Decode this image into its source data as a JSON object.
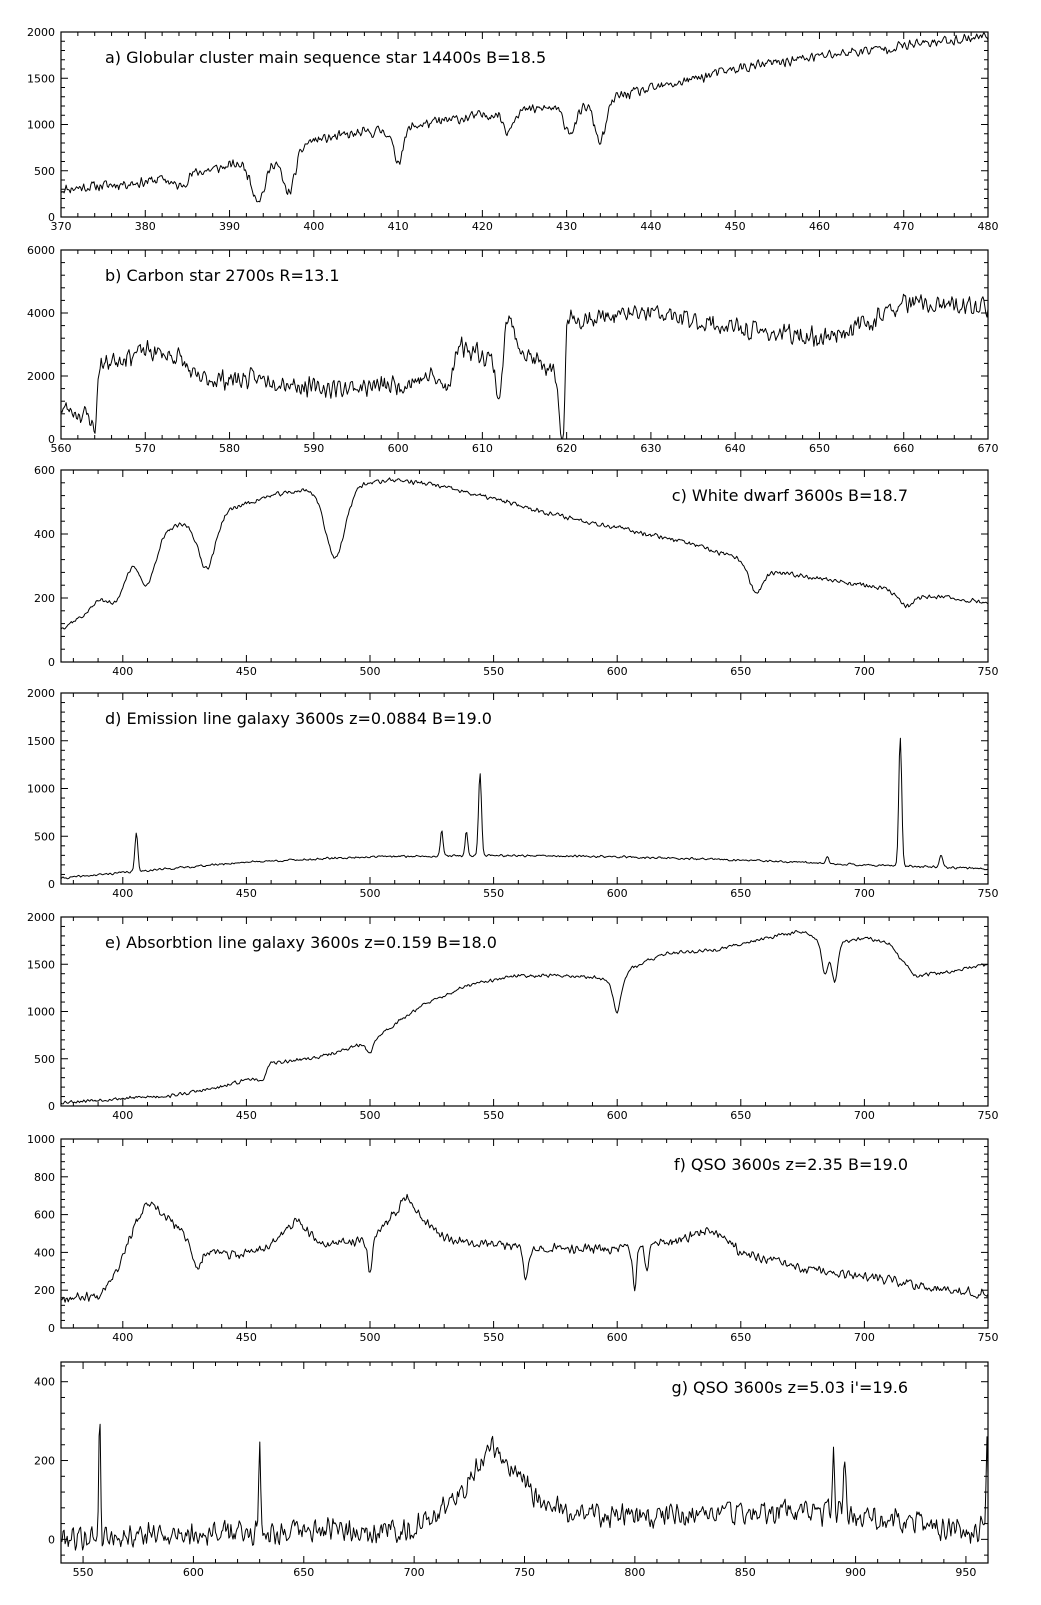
{
  "chart_data": [
    {
      "type": "line",
      "title": "a) Globular cluster main sequence star 14400s B=18.5",
      "xlim": [
        370,
        480
      ],
      "ylim": [
        0,
        2000
      ],
      "xticks": [
        370,
        380,
        390,
        400,
        410,
        420,
        430,
        440,
        450,
        460,
        470,
        480
      ],
      "yticks": [
        0,
        500,
        1000,
        1500,
        2000
      ],
      "title_position": "top-left",
      "continuum": [
        [
          370,
          300
        ],
        [
          380,
          380
        ],
        [
          390,
          550
        ],
        [
          400,
          830
        ],
        [
          410,
          960
        ],
        [
          420,
          1100
        ],
        [
          430,
          1200
        ],
        [
          440,
          1380
        ],
        [
          450,
          1600
        ],
        [
          460,
          1740
        ],
        [
          470,
          1850
        ],
        [
          480,
          1960
        ]
      ],
      "features": [
        [
          384,
          -120,
          0.8
        ],
        [
          393.5,
          -450,
          0.9
        ],
        [
          397,
          -480,
          0.8
        ],
        [
          410,
          -350,
          0.6
        ],
        [
          423,
          -200,
          0.5
        ],
        [
          430.5,
          -280,
          0.8
        ],
        [
          434,
          -450,
          0.7
        ],
        [
          486,
          0,
          1
        ]
      ],
      "noise": 70,
      "seed": 11
    },
    {
      "type": "line",
      "title": "b) Carbon star 2700s R=13.1",
      "xlim": [
        560,
        670
      ],
      "ylim": [
        0,
        6000
      ],
      "xticks": [
        560,
        570,
        580,
        590,
        600,
        610,
        620,
        630,
        640,
        650,
        660,
        670
      ],
      "yticks": [
        0,
        2000,
        4000,
        6000
      ],
      "title_position": "top-left",
      "continuum": [
        [
          560,
          1000
        ],
        [
          563.5,
          700
        ],
        [
          564,
          100
        ],
        [
          564.5,
          2300
        ],
        [
          566,
          2500
        ],
        [
          570,
          2800
        ],
        [
          574,
          2600
        ],
        [
          576,
          1900
        ],
        [
          585,
          1900
        ],
        [
          590,
          1600
        ],
        [
          600,
          1700
        ],
        [
          604,
          2000
        ],
        [
          606,
          1500
        ],
        [
          607,
          3000
        ],
        [
          612,
          2500
        ],
        [
          613,
          3900
        ],
        [
          615,
          2700
        ],
        [
          619,
          2000
        ],
        [
          619.6,
          900
        ],
        [
          620,
          3800
        ],
        [
          630,
          4000
        ],
        [
          640,
          3500
        ],
        [
          650,
          3200
        ],
        [
          655,
          3600
        ],
        [
          660,
          4300
        ],
        [
          665,
          4200
        ],
        [
          670,
          4200
        ]
      ],
      "features": [
        [
          612,
          -1200,
          0.4
        ],
        [
          619.3,
          -1400,
          0.35
        ],
        [
          567,
          0,
          1
        ]
      ],
      "noise": 380,
      "seed": 23
    },
    {
      "type": "line",
      "title": "c) White dwarf 3600s B=18.7",
      "xlim": [
        375,
        750
      ],
      "ylim": [
        0,
        600
      ],
      "xticks": [
        400,
        450,
        500,
        550,
        600,
        650,
        700,
        750
      ],
      "yticks": [
        0,
        200,
        400,
        600
      ],
      "title_position": "top-right",
      "continuum": [
        [
          375,
          105
        ],
        [
          385,
          150
        ],
        [
          395,
          240
        ],
        [
          405,
          320
        ],
        [
          420,
          420
        ],
        [
          440,
          470
        ],
        [
          460,
          520
        ],
        [
          475,
          540
        ],
        [
          500,
          560
        ],
        [
          510,
          570
        ],
        [
          525,
          555
        ],
        [
          550,
          510
        ],
        [
          575,
          460
        ],
        [
          600,
          420
        ],
        [
          625,
          380
        ],
        [
          650,
          320
        ],
        [
          660,
          280
        ],
        [
          675,
          270
        ],
        [
          700,
          240
        ],
        [
          720,
          210
        ],
        [
          735,
          200
        ],
        [
          750,
          185
        ]
      ],
      "features": [
        [
          397,
          -70,
          3
        ],
        [
          410,
          -110,
          3
        ],
        [
          434,
          -160,
          3.5
        ],
        [
          486,
          -220,
          4
        ],
        [
          656,
          -80,
          2.5
        ],
        [
          717,
          -40,
          3
        ]
      ],
      "noise": 9,
      "seed": 37
    },
    {
      "type": "line",
      "title": "d) Emission line galaxy 3600s z=0.0884 B=19.0",
      "xlim": [
        375,
        750
      ],
      "ylim": [
        0,
        2000
      ],
      "xticks": [
        400,
        450,
        500,
        550,
        600,
        650,
        700,
        750
      ],
      "yticks": [
        0,
        500,
        1000,
        1500,
        2000
      ],
      "title_position": "top-left",
      "continuum": [
        [
          375,
          60
        ],
        [
          400,
          120
        ],
        [
          450,
          230
        ],
        [
          500,
          285
        ],
        [
          550,
          300
        ],
        [
          600,
          285
        ],
        [
          650,
          250
        ],
        [
          700,
          200
        ],
        [
          750,
          160
        ]
      ],
      "features": [
        [
          405.5,
          400,
          0.6
        ],
        [
          529,
          280,
          0.5
        ],
        [
          539,
          260,
          0.5
        ],
        [
          544.5,
          870,
          0.6
        ],
        [
          714.5,
          1350,
          0.6
        ],
        [
          731,
          130,
          0.6
        ],
        [
          685,
          60,
          0.6
        ]
      ],
      "noise": 14,
      "seed": 41
    },
    {
      "type": "line",
      "title": "e) Absorbtion line galaxy 3600s z=0.159 B=18.0",
      "xlim": [
        375,
        750
      ],
      "ylim": [
        0,
        2000
      ],
      "xticks": [
        400,
        450,
        500,
        550,
        600,
        650,
        700,
        750
      ],
      "yticks": [
        0,
        500,
        1000,
        1500,
        2000
      ],
      "title_position": "top-left",
      "continuum": [
        [
          375,
          40
        ],
        [
          400,
          80
        ],
        [
          420,
          110
        ],
        [
          440,
          200
        ],
        [
          455,
          320
        ],
        [
          460,
          450
        ],
        [
          480,
          520
        ],
        [
          500,
          680
        ],
        [
          520,
          1050
        ],
        [
          540,
          1280
        ],
        [
          560,
          1380
        ],
        [
          580,
          1380
        ],
        [
          595,
          1350
        ],
        [
          600,
          1170
        ],
        [
          605,
          1450
        ],
        [
          620,
          1620
        ],
        [
          640,
          1650
        ],
        [
          660,
          1780
        ],
        [
          675,
          1850
        ],
        [
          685,
          1700
        ],
        [
          700,
          1780
        ],
        [
          710,
          1720
        ],
        [
          720,
          1380
        ],
        [
          735,
          1420
        ],
        [
          750,
          1500
        ]
      ],
      "features": [
        [
          456,
          -90,
          1.5
        ],
        [
          500,
          -110,
          1.5
        ],
        [
          600,
          -180,
          1.2
        ],
        [
          684,
          -320,
          1.2
        ],
        [
          688,
          -400,
          1.2
        ]
      ],
      "noise": 24,
      "seed": 53
    },
    {
      "type": "line",
      "title": "f) QSO 3600s z=2.35 B=19.0",
      "xlim": [
        375,
        750
      ],
      "ylim": [
        0,
        1000
      ],
      "xticks": [
        400,
        450,
        500,
        550,
        600,
        650,
        700,
        750
      ],
      "yticks": [
        0,
        200,
        400,
        600,
        800,
        1000
      ],
      "title_position": "top-right",
      "continuum": [
        [
          375,
          160
        ],
        [
          390,
          170
        ],
        [
          398,
          320
        ],
        [
          404,
          520
        ],
        [
          410,
          660
        ],
        [
          420,
          560
        ],
        [
          430,
          420
        ],
        [
          445,
          380
        ],
        [
          460,
          440
        ],
        [
          470,
          570
        ],
        [
          480,
          440
        ],
        [
          495,
          460
        ],
        [
          505,
          520
        ],
        [
          515,
          700
        ],
        [
          520,
          600
        ],
        [
          530,
          480
        ],
        [
          550,
          440
        ],
        [
          575,
          420
        ],
        [
          600,
          420
        ],
        [
          625,
          460
        ],
        [
          638,
          530
        ],
        [
          650,
          400
        ],
        [
          675,
          310
        ],
        [
          700,
          270
        ],
        [
          725,
          220
        ],
        [
          750,
          180
        ]
      ],
      "features": [
        [
          430,
          -120,
          1.5
        ],
        [
          500,
          -180,
          1
        ],
        [
          563,
          -160,
          1
        ],
        [
          607,
          -220,
          0.8
        ],
        [
          612,
          -140,
          0.8
        ]
      ],
      "noise": 30,
      "seed": 67
    },
    {
      "type": "line",
      "title": "g) QSO 3600s z=5.03 i'=19.6",
      "xlim": [
        540,
        960
      ],
      "ylim": [
        -60,
        450
      ],
      "xticks": [
        550,
        600,
        650,
        700,
        750,
        800,
        850,
        900,
        950
      ],
      "yticks": [
        0,
        200,
        400
      ],
      "title_position": "top-right",
      "continuum": [
        [
          540,
          5
        ],
        [
          600,
          15
        ],
        [
          650,
          20
        ],
        [
          700,
          25
        ],
        [
          720,
          110
        ],
        [
          735,
          240
        ],
        [
          745,
          170
        ],
        [
          760,
          80
        ],
        [
          800,
          55
        ],
        [
          850,
          70
        ],
        [
          900,
          65
        ],
        [
          930,
          40
        ],
        [
          955,
          10
        ],
        [
          960,
          60
        ]
      ],
      "features": [
        [
          557.5,
          330,
          0.4
        ],
        [
          630,
          260,
          0.4
        ],
        [
          959.5,
          200,
          0.4
        ],
        [
          890,
          150,
          0.5
        ],
        [
          895,
          140,
          0.5
        ]
      ],
      "noise": 38,
      "seed": 79
    }
  ]
}
